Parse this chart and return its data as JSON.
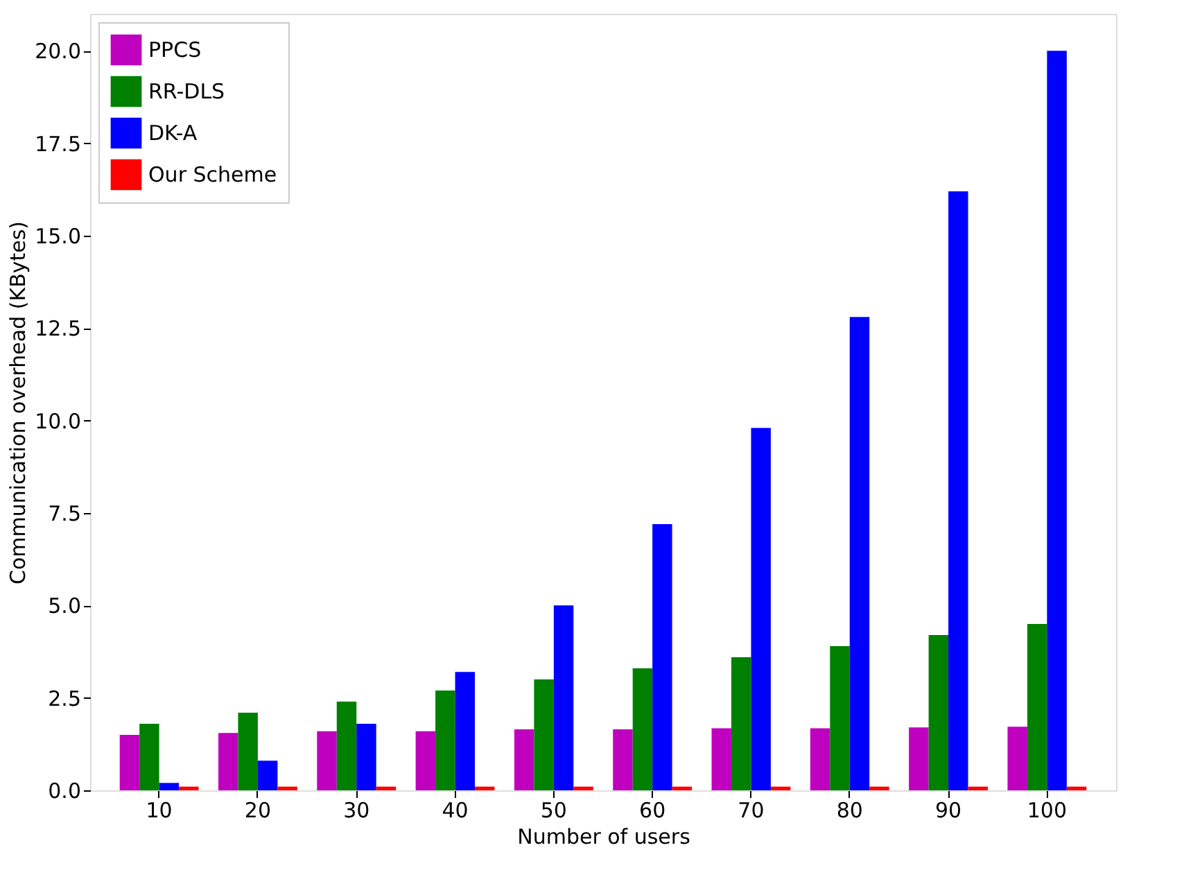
{
  "chart_data": {
    "type": "bar",
    "xlabel": "Number of users",
    "ylabel": "Communication overhead (KBytes)",
    "categories": [
      "10",
      "20",
      "30",
      "40",
      "50",
      "60",
      "70",
      "80",
      "90",
      "100"
    ],
    "series": [
      {
        "name": "PPCS",
        "color": "#bf00bf",
        "values": [
          1.5,
          1.55,
          1.6,
          1.6,
          1.65,
          1.65,
          1.68,
          1.68,
          1.7,
          1.72
        ]
      },
      {
        "name": "RR-DLS",
        "color": "#008000",
        "values": [
          1.8,
          2.1,
          2.4,
          2.7,
          3.0,
          3.3,
          3.6,
          3.9,
          4.2,
          4.5
        ]
      },
      {
        "name": "DK-A",
        "color": "#0000ff",
        "values": [
          0.2,
          0.8,
          1.8,
          3.2,
          5.0,
          7.2,
          9.8,
          12.8,
          16.2,
          20.0
        ]
      },
      {
        "name": "Our Scheme",
        "color": "#ff0000",
        "values": [
          0.1,
          0.1,
          0.1,
          0.1,
          0.1,
          0.1,
          0.1,
          0.1,
          0.1,
          0.1
        ]
      }
    ],
    "ylim": [
      0,
      21
    ],
    "yticks": [
      {
        "value": 0,
        "label": "0.0"
      },
      {
        "value": 2.5,
        "label": "2.5"
      },
      {
        "value": 5,
        "label": "5.0"
      },
      {
        "value": 7.5,
        "label": "7.5"
      },
      {
        "value": 10,
        "label": "10.0"
      },
      {
        "value": 12.5,
        "label": "12.5"
      },
      {
        "value": 15,
        "label": "15.0"
      },
      {
        "value": 17.5,
        "label": "17.5"
      },
      {
        "value": 20,
        "label": "20.0"
      }
    ],
    "grid": false,
    "legend": "top left"
  }
}
